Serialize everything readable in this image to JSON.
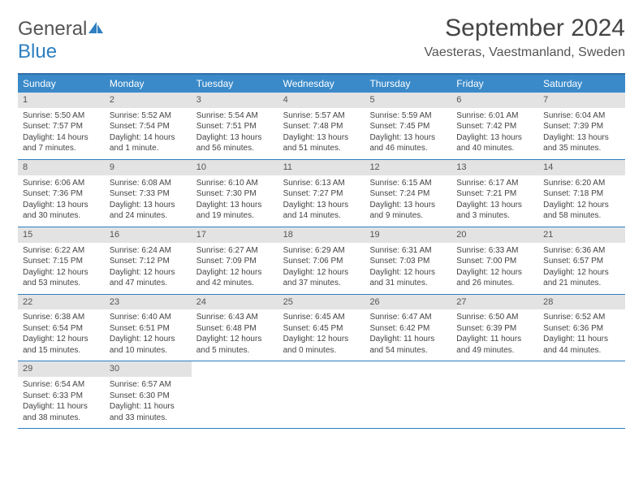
{
  "logo": {
    "text1": "General",
    "text2": "Blue"
  },
  "title": "September 2024",
  "location": "Vaesteras, Vaestmanland, Sweden",
  "colors": {
    "header_bg": "#3a8ac9",
    "header_border": "#306fa8",
    "week_border": "#2d7fc1",
    "daynum_bg": "#e3e3e3",
    "text": "#444444",
    "logo_gray": "#555555",
    "logo_blue": "#2d7fc1"
  },
  "day_headers": [
    "Sunday",
    "Monday",
    "Tuesday",
    "Wednesday",
    "Thursday",
    "Friday",
    "Saturday"
  ],
  "weeks": [
    [
      {
        "num": "1",
        "sunrise": "Sunrise: 5:50 AM",
        "sunset": "Sunset: 7:57 PM",
        "daylight1": "Daylight: 14 hours",
        "daylight2": "and 7 minutes."
      },
      {
        "num": "2",
        "sunrise": "Sunrise: 5:52 AM",
        "sunset": "Sunset: 7:54 PM",
        "daylight1": "Daylight: 14 hours",
        "daylight2": "and 1 minute."
      },
      {
        "num": "3",
        "sunrise": "Sunrise: 5:54 AM",
        "sunset": "Sunset: 7:51 PM",
        "daylight1": "Daylight: 13 hours",
        "daylight2": "and 56 minutes."
      },
      {
        "num": "4",
        "sunrise": "Sunrise: 5:57 AM",
        "sunset": "Sunset: 7:48 PM",
        "daylight1": "Daylight: 13 hours",
        "daylight2": "and 51 minutes."
      },
      {
        "num": "5",
        "sunrise": "Sunrise: 5:59 AM",
        "sunset": "Sunset: 7:45 PM",
        "daylight1": "Daylight: 13 hours",
        "daylight2": "and 46 minutes."
      },
      {
        "num": "6",
        "sunrise": "Sunrise: 6:01 AM",
        "sunset": "Sunset: 7:42 PM",
        "daylight1": "Daylight: 13 hours",
        "daylight2": "and 40 minutes."
      },
      {
        "num": "7",
        "sunrise": "Sunrise: 6:04 AM",
        "sunset": "Sunset: 7:39 PM",
        "daylight1": "Daylight: 13 hours",
        "daylight2": "and 35 minutes."
      }
    ],
    [
      {
        "num": "8",
        "sunrise": "Sunrise: 6:06 AM",
        "sunset": "Sunset: 7:36 PM",
        "daylight1": "Daylight: 13 hours",
        "daylight2": "and 30 minutes."
      },
      {
        "num": "9",
        "sunrise": "Sunrise: 6:08 AM",
        "sunset": "Sunset: 7:33 PM",
        "daylight1": "Daylight: 13 hours",
        "daylight2": "and 24 minutes."
      },
      {
        "num": "10",
        "sunrise": "Sunrise: 6:10 AM",
        "sunset": "Sunset: 7:30 PM",
        "daylight1": "Daylight: 13 hours",
        "daylight2": "and 19 minutes."
      },
      {
        "num": "11",
        "sunrise": "Sunrise: 6:13 AM",
        "sunset": "Sunset: 7:27 PM",
        "daylight1": "Daylight: 13 hours",
        "daylight2": "and 14 minutes."
      },
      {
        "num": "12",
        "sunrise": "Sunrise: 6:15 AM",
        "sunset": "Sunset: 7:24 PM",
        "daylight1": "Daylight: 13 hours",
        "daylight2": "and 9 minutes."
      },
      {
        "num": "13",
        "sunrise": "Sunrise: 6:17 AM",
        "sunset": "Sunset: 7:21 PM",
        "daylight1": "Daylight: 13 hours",
        "daylight2": "and 3 minutes."
      },
      {
        "num": "14",
        "sunrise": "Sunrise: 6:20 AM",
        "sunset": "Sunset: 7:18 PM",
        "daylight1": "Daylight: 12 hours",
        "daylight2": "and 58 minutes."
      }
    ],
    [
      {
        "num": "15",
        "sunrise": "Sunrise: 6:22 AM",
        "sunset": "Sunset: 7:15 PM",
        "daylight1": "Daylight: 12 hours",
        "daylight2": "and 53 minutes."
      },
      {
        "num": "16",
        "sunrise": "Sunrise: 6:24 AM",
        "sunset": "Sunset: 7:12 PM",
        "daylight1": "Daylight: 12 hours",
        "daylight2": "and 47 minutes."
      },
      {
        "num": "17",
        "sunrise": "Sunrise: 6:27 AM",
        "sunset": "Sunset: 7:09 PM",
        "daylight1": "Daylight: 12 hours",
        "daylight2": "and 42 minutes."
      },
      {
        "num": "18",
        "sunrise": "Sunrise: 6:29 AM",
        "sunset": "Sunset: 7:06 PM",
        "daylight1": "Daylight: 12 hours",
        "daylight2": "and 37 minutes."
      },
      {
        "num": "19",
        "sunrise": "Sunrise: 6:31 AM",
        "sunset": "Sunset: 7:03 PM",
        "daylight1": "Daylight: 12 hours",
        "daylight2": "and 31 minutes."
      },
      {
        "num": "20",
        "sunrise": "Sunrise: 6:33 AM",
        "sunset": "Sunset: 7:00 PM",
        "daylight1": "Daylight: 12 hours",
        "daylight2": "and 26 minutes."
      },
      {
        "num": "21",
        "sunrise": "Sunrise: 6:36 AM",
        "sunset": "Sunset: 6:57 PM",
        "daylight1": "Daylight: 12 hours",
        "daylight2": "and 21 minutes."
      }
    ],
    [
      {
        "num": "22",
        "sunrise": "Sunrise: 6:38 AM",
        "sunset": "Sunset: 6:54 PM",
        "daylight1": "Daylight: 12 hours",
        "daylight2": "and 15 minutes."
      },
      {
        "num": "23",
        "sunrise": "Sunrise: 6:40 AM",
        "sunset": "Sunset: 6:51 PM",
        "daylight1": "Daylight: 12 hours",
        "daylight2": "and 10 minutes."
      },
      {
        "num": "24",
        "sunrise": "Sunrise: 6:43 AM",
        "sunset": "Sunset: 6:48 PM",
        "daylight1": "Daylight: 12 hours",
        "daylight2": "and 5 minutes."
      },
      {
        "num": "25",
        "sunrise": "Sunrise: 6:45 AM",
        "sunset": "Sunset: 6:45 PM",
        "daylight1": "Daylight: 12 hours",
        "daylight2": "and 0 minutes."
      },
      {
        "num": "26",
        "sunrise": "Sunrise: 6:47 AM",
        "sunset": "Sunset: 6:42 PM",
        "daylight1": "Daylight: 11 hours",
        "daylight2": "and 54 minutes."
      },
      {
        "num": "27",
        "sunrise": "Sunrise: 6:50 AM",
        "sunset": "Sunset: 6:39 PM",
        "daylight1": "Daylight: 11 hours",
        "daylight2": "and 49 minutes."
      },
      {
        "num": "28",
        "sunrise": "Sunrise: 6:52 AM",
        "sunset": "Sunset: 6:36 PM",
        "daylight1": "Daylight: 11 hours",
        "daylight2": "and 44 minutes."
      }
    ],
    [
      {
        "num": "29",
        "sunrise": "Sunrise: 6:54 AM",
        "sunset": "Sunset: 6:33 PM",
        "daylight1": "Daylight: 11 hours",
        "daylight2": "and 38 minutes."
      },
      {
        "num": "30",
        "sunrise": "Sunrise: 6:57 AM",
        "sunset": "Sunset: 6:30 PM",
        "daylight1": "Daylight: 11 hours",
        "daylight2": "and 33 minutes."
      },
      null,
      null,
      null,
      null,
      null
    ]
  ]
}
